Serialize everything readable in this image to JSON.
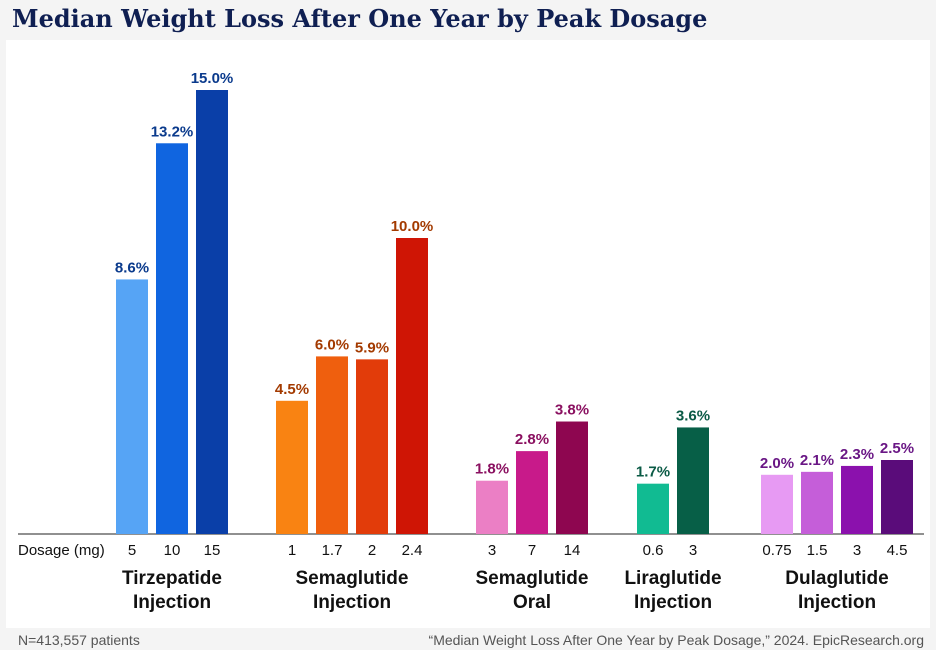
{
  "chart_data": {
    "type": "bar",
    "title": "Median Weight Loss After One Year by Peak Dosage",
    "xlabel": "Dosage (mg)",
    "ylabel": "",
    "ylim": [
      0,
      15
    ],
    "value_suffix": "%",
    "groups": [
      {
        "name_lines": [
          "Tirzepatide",
          "Injection"
        ],
        "label_color": "#0a3a8c",
        "bars": [
          {
            "dose": "5",
            "value": 8.6,
            "label": "8.6%",
            "color": "#56a4f5"
          },
          {
            "dose": "10",
            "value": 13.2,
            "label": "13.2%",
            "color": "#1065e0"
          },
          {
            "dose": "15",
            "value": 15.0,
            "label": "15.0%",
            "color": "#0a3fa8"
          }
        ]
      },
      {
        "name_lines": [
          "Semaglutide",
          "Injection"
        ],
        "label_color": "#a33a00",
        "bars": [
          {
            "dose": "1",
            "value": 4.5,
            "label": "4.5%",
            "color": "#f98312"
          },
          {
            "dose": "1.7",
            "value": 6.0,
            "label": "6.0%",
            "color": "#ef5f0e"
          },
          {
            "dose": "2",
            "value": 5.9,
            "label": "5.9%",
            "color": "#e23c0a"
          },
          {
            "dose": "2.4",
            "value": 10.0,
            "label": "10.0%",
            "color": "#cf1505"
          }
        ]
      },
      {
        "name_lines": [
          "Semaglutide",
          "Oral"
        ],
        "label_color": "#8a1060",
        "bars": [
          {
            "dose": "3",
            "value": 1.8,
            "label": "1.8%",
            "color": "#eb7fc5"
          },
          {
            "dose": "7",
            "value": 2.8,
            "label": "2.8%",
            "color": "#c81a8a"
          },
          {
            "dose": "14",
            "value": 3.8,
            "label": "3.8%",
            "color": "#8e0650"
          }
        ]
      },
      {
        "name_lines": [
          "Liraglutide",
          "Injection"
        ],
        "label_color": "#0a5a45",
        "bars": [
          {
            "dose": "0.6",
            "value": 1.7,
            "label": "1.7%",
            "color": "#11bb92"
          },
          {
            "dose": "3",
            "value": 3.6,
            "label": "3.6%",
            "color": "#075f47"
          }
        ]
      },
      {
        "name_lines": [
          "Dulaglutide",
          "Injection"
        ],
        "label_color": "#6a1785",
        "bars": [
          {
            "dose": "0.75",
            "value": 2.0,
            "label": "2.0%",
            "color": "#e79af3"
          },
          {
            "dose": "1.5",
            "value": 2.1,
            "label": "2.1%",
            "color": "#c55ed9"
          },
          {
            "dose": "3",
            "value": 2.3,
            "label": "2.3%",
            "color": "#8b11ad"
          },
          {
            "dose": "4.5",
            "value": 2.5,
            "label": "2.5%",
            "color": "#5a0c7a"
          }
        ]
      }
    ]
  },
  "footer": {
    "patients": "N=413,557 patients",
    "source": "“Median Weight Loss After One Year by Peak Dosage,” 2024. EpicResearch.org"
  }
}
